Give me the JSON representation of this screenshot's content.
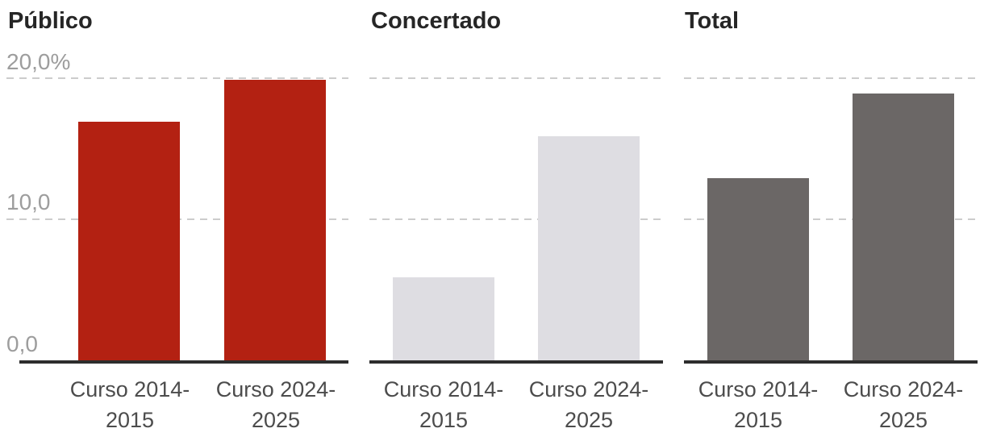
{
  "chart_data": {
    "type": "bar",
    "layout": "small-multiples",
    "unit": "%",
    "ylim": [
      0,
      20
    ],
    "y_tick_values": [
      20,
      10,
      0
    ],
    "y_tick_labels": [
      "20,0%",
      "10,0",
      "0,0"
    ],
    "grid": "dashed horizontal gridlines at 10 and 20",
    "legend_position": "none",
    "categories": [
      "Curso 2014-2015",
      "Curso 2024-2025"
    ],
    "categories_display": [
      [
        "Curso 2014-",
        "2015"
      ],
      [
        "Curso 2024-",
        "2025"
      ]
    ],
    "panels": [
      {
        "title": "Público",
        "color": "#b32112",
        "values": [
          16.9,
          19.9
        ]
      },
      {
        "title": "Concertado",
        "color": "#dedde2",
        "values": [
          5.9,
          15.9
        ]
      },
      {
        "title": "Total",
        "color": "#6b6766",
        "values": [
          12.9,
          18.9
        ]
      }
    ]
  },
  "colors": {
    "background": "#ffffff",
    "axis_line": "#2d2d2d",
    "gridline": "#cccccc",
    "title_text": "#262626",
    "y_tick_text": "#9d9d9d",
    "x_tick_text": "#4c4c4c",
    "bar_publico": "#b32112",
    "bar_concertado": "#dedde2",
    "bar_total": "#6b6766"
  }
}
